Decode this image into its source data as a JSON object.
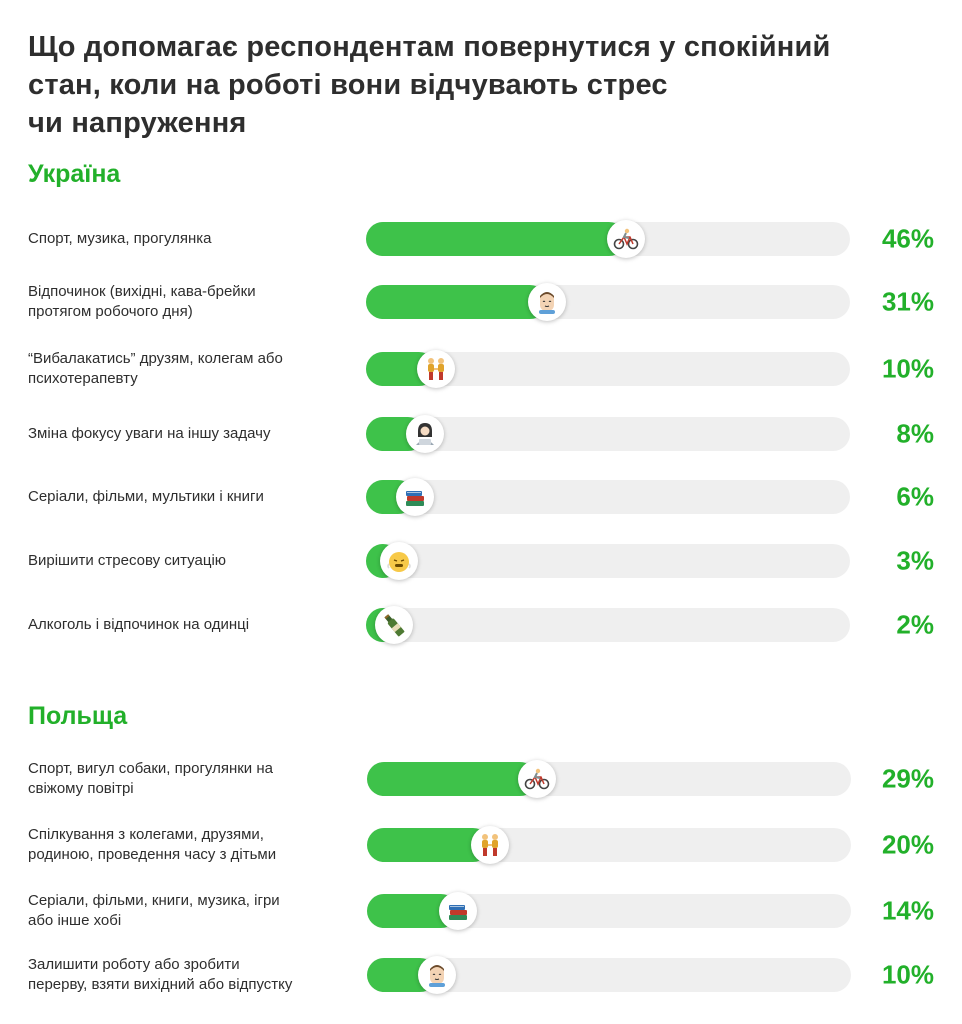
{
  "chart_data": [
    {
      "type": "bar",
      "title": "Україна",
      "categories": [
        "Спорт, музика, прогулянка",
        "Відпочинок (вихідні, кава-брейки\nпротягом робочого дня)",
        "“Вибалакатись” друзям, колегам або\nпсихотерапевту",
        "Зміна фокусу уваги на іншу задачу",
        "Серіали, фільми, мультики і книги",
        "Вирішити стресову ситуацію",
        "Алкоголь і відпочинок на одинці"
      ],
      "values": [
        46,
        31,
        10,
        8,
        6,
        3,
        2
      ],
      "value_labels": [
        "46%",
        "31%",
        "10%",
        "8%",
        "6%",
        "3%",
        "2%"
      ],
      "icons": [
        "cyclist-icon",
        "relieved-face-icon",
        "people-holding-hands-icon",
        "person-laptop-icon",
        "books-icon",
        "steam-face-icon",
        "wine-bottle-icon"
      ],
      "ylim": [
        0,
        100
      ]
    },
    {
      "type": "bar",
      "title": "Польща",
      "categories": [
        "Спорт, вигул собаки, прогулянки на\nсвіжому повітрі",
        "Спілкування з колегами, друзями,\nродиною, проведення часу з дітьми",
        "Серіали, фільми, книги, музика, ігри\nабо інше хобі",
        "Залишити роботу або зробити\nперерву, взяти вихідний або відпустку"
      ],
      "values": [
        29,
        20,
        14,
        10
      ],
      "value_labels": [
        "29%",
        "20%",
        "14%",
        "10%"
      ],
      "icons": [
        "cyclist-icon",
        "people-holding-hands-icon",
        "books-icon",
        "relieved-face-icon"
      ],
      "ylim": [
        0,
        100
      ]
    }
  ],
  "page": {
    "title": "Що допомагає респондентам повернутися у спокійний\nстан, коли на роботі вони відчувають стрес\nчи напруження"
  },
  "colors": {
    "accent": "#22b02a",
    "bar_fill": "#3ec24a",
    "track": "#efefef",
    "text": "#2e2e2e"
  }
}
